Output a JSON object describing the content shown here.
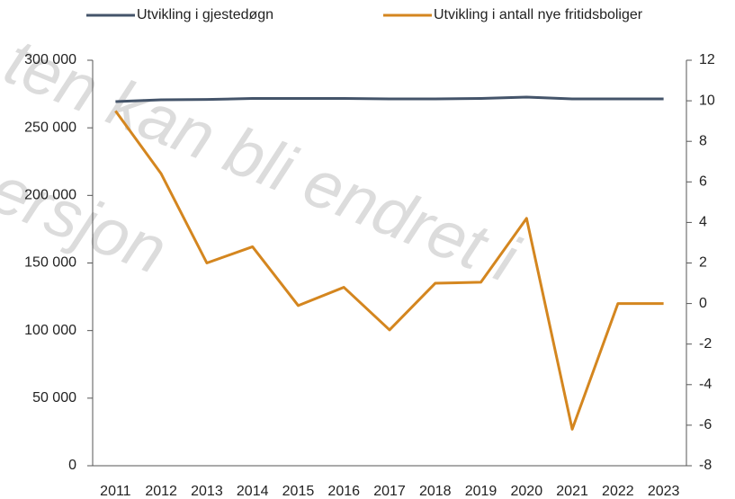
{
  "chart_data": {
    "type": "line",
    "watermark": [
      "ten kan bli endret i",
      "ersjon"
    ],
    "categories": [
      "2011",
      "2012",
      "2013",
      "2014",
      "2015",
      "2016",
      "2017",
      "2018",
      "2019",
      "2020",
      "2021",
      "2022",
      "2023"
    ],
    "series": [
      {
        "name": "Utvikling i gjestedøgn",
        "color": "#44546a",
        "axis": "y",
        "values": [
          269400,
          270700,
          271000,
          271700,
          271700,
          271700,
          271400,
          271400,
          271700,
          272700,
          271400,
          271400,
          271400
        ]
      },
      {
        "name": "Utvikling i antall nye fritidsboliger",
        "color": "#d4861f",
        "axis": "y2",
        "values": [
          9.5,
          6.4,
          2.0,
          2.8,
          -0.1,
          0.8,
          -1.3,
          1.0,
          1.05,
          4.2,
          -6.2,
          0,
          0
        ]
      }
    ],
    "ylim": [
      0,
      300000
    ],
    "yticks": [
      0,
      {
        "value": 50000,
        "label": "50 000"
      },
      {
        "value": 100000,
        "label": "100 000"
      },
      {
        "value": 150000,
        "label": "150 000"
      },
      {
        "value": 200000,
        "label": "200 000"
      },
      {
        "value": 250000,
        "label": "250 000"
      },
      {
        "value": 300000,
        "label": "300 000"
      }
    ],
    "y2lim": [
      -8,
      12
    ],
    "y2ticks": [
      -8,
      -6,
      -4,
      -2,
      0,
      2,
      4,
      6,
      8,
      10,
      12
    ],
    "legend": "top"
  }
}
